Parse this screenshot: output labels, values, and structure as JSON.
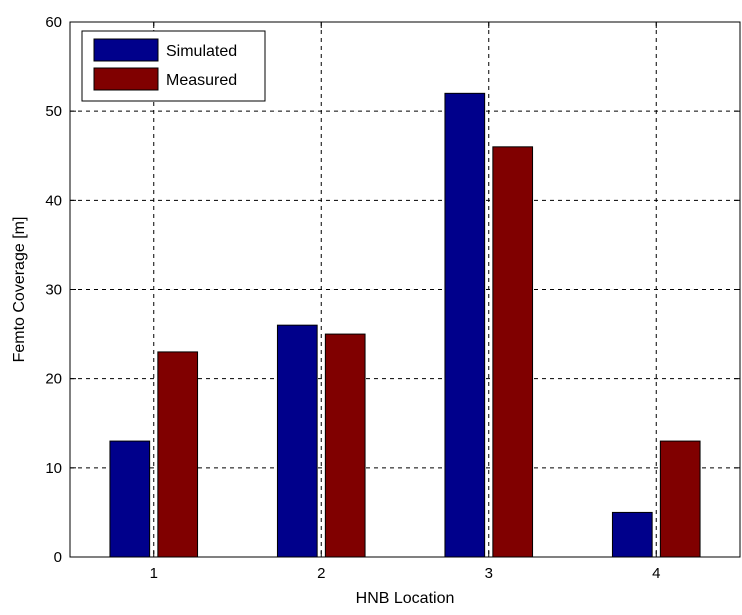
{
  "chart_data": {
    "type": "bar",
    "title": "",
    "xlabel": "HNB Location",
    "ylabel": "Femto Coverage [m]",
    "categories": [
      "1",
      "2",
      "3",
      "4"
    ],
    "series": [
      {
        "name": "Simulated",
        "values": [
          13,
          26,
          52,
          5
        ],
        "color": "#00008B"
      },
      {
        "name": "Measured",
        "values": [
          23,
          25,
          46,
          13
        ],
        "color": "#800000"
      }
    ],
    "ylim": [
      0,
      60
    ],
    "yticks": [
      0,
      10,
      20,
      30,
      40,
      50,
      60
    ],
    "grid": true,
    "grid_style": "dashed",
    "legend_position": "top-left"
  }
}
